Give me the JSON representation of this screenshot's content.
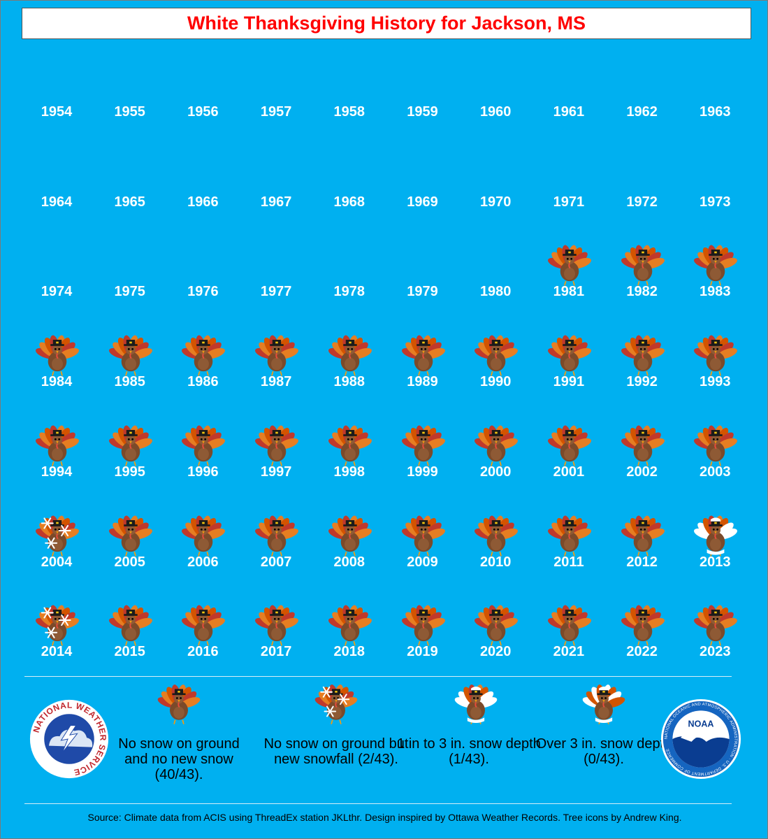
{
  "title": "White Thanksgiving History for Jackson, MS",
  "chart_data": {
    "type": "table",
    "category_key": {
      "none": "No snow on ground and no new snow",
      "new_snow": "No snow on ground but new snowfall",
      "depth_1_3": "1 in to 3 in. snow depth",
      "depth_over_3": "Over 3 in. snow depth"
    },
    "years": [
      1954,
      1955,
      1956,
      1957,
      1958,
      1959,
      1960,
      1961,
      1962,
      1963,
      1964,
      1965,
      1966,
      1967,
      1968,
      1969,
      1970,
      1971,
      1972,
      1973,
      1974,
      1975,
      1976,
      1977,
      1978,
      1979,
      1980,
      1981,
      1982,
      1983,
      1984,
      1985,
      1986,
      1987,
      1988,
      1989,
      1990,
      1991,
      1992,
      1993,
      1994,
      1995,
      1996,
      1997,
      1998,
      1999,
      2000,
      2001,
      2002,
      2003,
      2004,
      2005,
      2006,
      2007,
      2008,
      2009,
      2010,
      2011,
      2012,
      2013,
      2014,
      2015,
      2016,
      2017,
      2018,
      2019,
      2020,
      2021,
      2022,
      2023
    ],
    "status": [
      null,
      null,
      null,
      null,
      null,
      null,
      null,
      null,
      null,
      null,
      null,
      null,
      null,
      null,
      null,
      null,
      null,
      null,
      null,
      null,
      null,
      null,
      null,
      null,
      null,
      null,
      null,
      "none",
      "none",
      "none",
      "none",
      "none",
      "none",
      "none",
      "none",
      "none",
      "none",
      "none",
      "none",
      "none",
      "none",
      "none",
      "none",
      "none",
      "none",
      "none",
      "none",
      "none",
      "none",
      "none",
      "new_snow",
      "none",
      "none",
      "none",
      "none",
      "none",
      "none",
      "none",
      "none",
      "depth_1_3",
      "new_snow",
      "none",
      "none",
      "none",
      "none",
      "none",
      "none",
      "none",
      "none",
      "none"
    ]
  },
  "legend": [
    {
      "key": "none",
      "text": "No snow on ground and no new snow (40/43)."
    },
    {
      "key": "new_snow",
      "text": "No snow on ground but new snowfall (2/43)."
    },
    {
      "key": "depth_1_3",
      "text": "1 in to 3 in. snow depth (1/43)."
    },
    {
      "key": "depth_over_3",
      "text": "Over 3 in. snow depth (0/43)."
    }
  ],
  "logos": {
    "nws": "NATIONAL WEATHER SERVICE",
    "noaa": "NOAA",
    "noaa_ring": "NATIONAL OCEANIC AND ATMOSPHERIC ADMINISTRATION · U.S. DEPARTMENT OF COMMERCE"
  },
  "source": "Source: Climate data from ACIS using ThreadEx station JKLthr. Design inspired by Ottawa Weather Records. Tree icons by Andrew King.",
  "colors": {
    "background": "#00b0f0",
    "title": "#ff0000",
    "year_text": "#ffffff"
  },
  "icons": [
    "turkey-icon",
    "snowflake-icon",
    "nws-logo",
    "noaa-logo"
  ]
}
